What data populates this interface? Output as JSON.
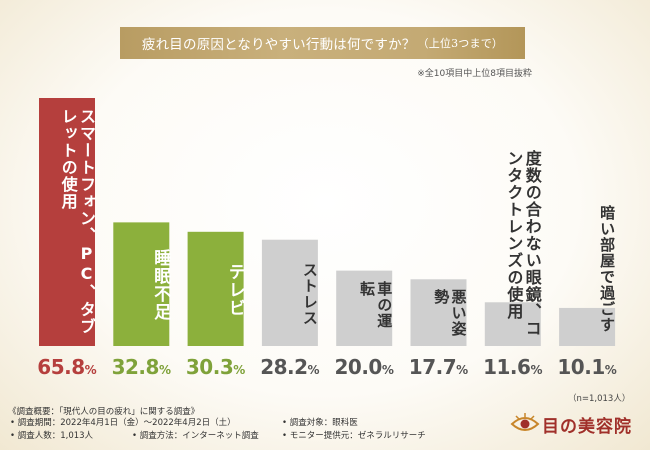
{
  "title": "疲れ目の原因となりやすい行動は何ですか？",
  "title_suffix": "（上位3つまで）",
  "subnote": "※全10項目中上位8項目抜粋",
  "n_note": "（n=1,013人）",
  "colors": {
    "banner": "#c2a771",
    "red": "#b53f3d",
    "green": "#8cb03c",
    "gray": "#cfcfcf"
  },
  "chart_data": {
    "type": "bar",
    "categories": [
      "スマートフォン、PC、タブレットの使用",
      "睡眠不足",
      "テレビ",
      "ストレス",
      "車の運転",
      "悪い姿勢",
      "度数の合わない眼鏡、コンタクトレンズの使用",
      "暗い部屋で過ごす"
    ],
    "values": [
      65.8,
      32.8,
      30.3,
      28.2,
      20.0,
      17.7,
      11.6,
      10.1
    ],
    "value_labels": [
      {
        "main": "65.8",
        "unit": "%"
      },
      {
        "main": "32.8",
        "unit": "%"
      },
      {
        "main": "30.3",
        "unit": "%"
      },
      {
        "main": "28.2",
        "unit": "%"
      },
      {
        "main": "20.0",
        "unit": "%"
      },
      {
        "main": "17.7",
        "unit": "%"
      },
      {
        "main": "11.6",
        "unit": "%"
      },
      {
        "main": "10.1",
        "unit": "%"
      }
    ],
    "bar_colors": [
      "red",
      "green",
      "green",
      "gray",
      "gray",
      "gray",
      "gray",
      "gray"
    ],
    "ylim": [
      0,
      65.8
    ],
    "grid": false,
    "legend": "none"
  },
  "footer": {
    "overview": "《調査概要：「現代人の目の疲れ」に関する調査》",
    "period": "• 調査期間：2022年4月1日（金）～2022年4月2日（土）",
    "respondents": "• 調査人数：1,013人",
    "method": "• 調査方法：インターネット調査",
    "target": "• 調査対象：眼科医",
    "provider": "• モニター提供元：ゼネラルリサーチ"
  },
  "logo": {
    "text": "目の美容院",
    "icon": "eye-logo-icon"
  }
}
